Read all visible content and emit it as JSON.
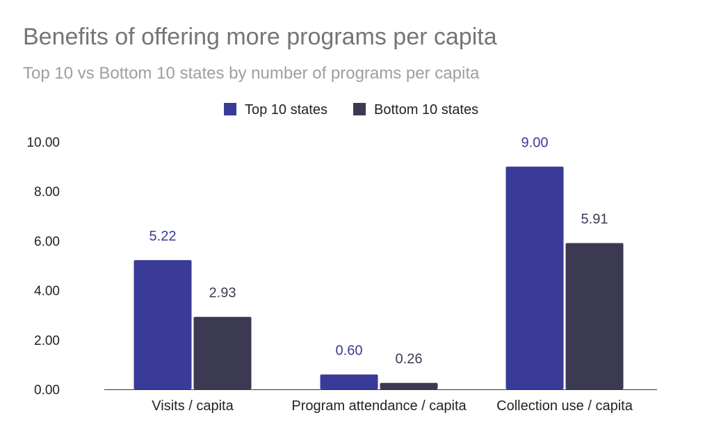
{
  "chart_data": {
    "type": "bar",
    "title": "Benefits of offering more programs per capita",
    "subtitle": "Top 10 vs Bottom 10 states by number of programs per capita",
    "xlabel": "",
    "ylabel": "",
    "categories": [
      "Visits / capita",
      "Program attendance / capita",
      "Collection use / capita"
    ],
    "series": [
      {
        "name": "Top 10 states",
        "values": [
          5.22,
          0.6,
          9.0
        ],
        "labels": [
          "5.22",
          "0.60",
          "9.00"
        ],
        "color": "#3a3a98",
        "label_color": "#3a3a98"
      },
      {
        "name": "Bottom 10 states",
        "values": [
          2.93,
          0.26,
          5.91
        ],
        "labels": [
          "2.93",
          "0.26",
          "5.91"
        ],
        "color": "#3c3a52",
        "label_color": "#3c3a52"
      }
    ],
    "ylim": [
      0,
      10
    ],
    "yticks": [
      "0.00",
      "2.00",
      "4.00",
      "6.00",
      "8.00",
      "10.00"
    ],
    "ytick_values": [
      0,
      2,
      4,
      6,
      8,
      10
    ],
    "grid": false,
    "legend_position": "top-center"
  }
}
